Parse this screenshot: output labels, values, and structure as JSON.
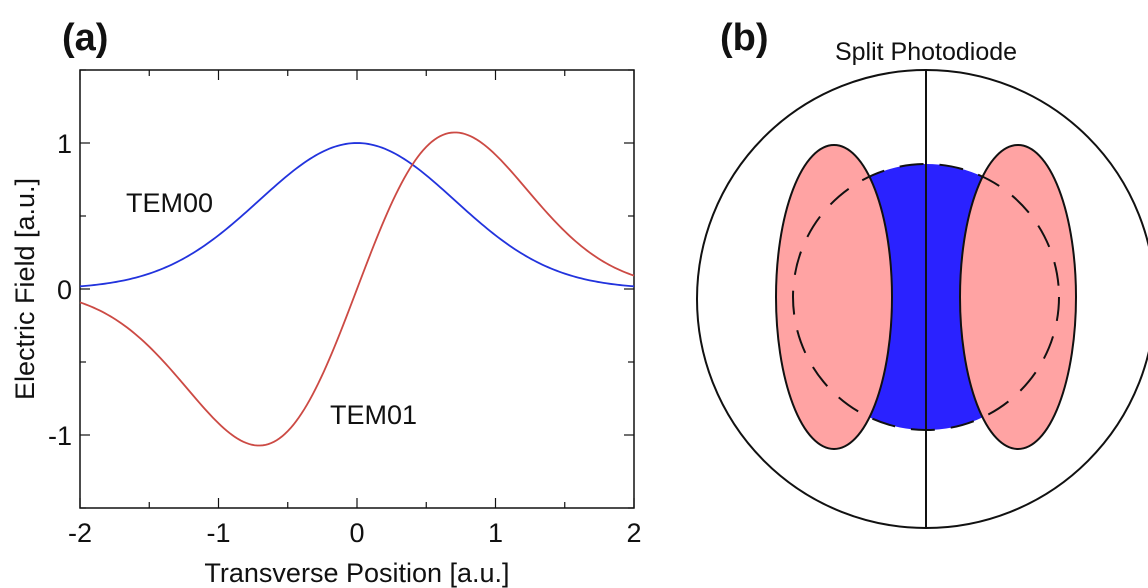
{
  "panel_a": {
    "label": "(a)",
    "xlabel": "Transverse Position [a.u.]",
    "ylabel": "Electric Field [a.u.]",
    "x_ticks": [
      "-2",
      "-1",
      "0",
      "1",
      "2"
    ],
    "y_ticks": [
      "-1",
      "0",
      "1"
    ],
    "annotation_tem00": "TEM00",
    "annotation_tem01": "TEM01"
  },
  "panel_b": {
    "label": "(b)",
    "title": "Split Photodiode"
  },
  "colors": {
    "tem00": "#2233dd",
    "tem01": "#cc4a44",
    "blue_fill": "#2a22ff",
    "pink_fill": "#ffa3a3"
  },
  "chart_data": {
    "type": "line",
    "xlim": [
      -2,
      2
    ],
    "ylim": [
      -1.5,
      1.5
    ],
    "grid": false,
    "legend": "none",
    "series": [
      {
        "name": "TEM00",
        "x": [
          -2,
          -1.75,
          -1.5,
          -1.25,
          -1,
          -0.75,
          -0.5,
          -0.25,
          0,
          0.25,
          0.5,
          0.75,
          1,
          1.25,
          1.5,
          1.75,
          2
        ],
        "y": [
          0.02,
          0.05,
          0.11,
          0.21,
          0.37,
          0.57,
          0.78,
          0.94,
          1.0,
          0.94,
          0.78,
          0.57,
          0.37,
          0.21,
          0.11,
          0.05,
          0.02
        ]
      },
      {
        "name": "TEM01",
        "x": [
          -2,
          -1.75,
          -1.5,
          -1.25,
          -1,
          -0.75,
          -0.5,
          -0.25,
          0,
          0.25,
          0.5,
          0.75,
          1,
          1.25,
          1.5,
          1.75,
          2
        ],
        "y": [
          -0.1,
          -0.25,
          -0.47,
          -0.74,
          -0.98,
          -1.06,
          -0.92,
          -0.55,
          0.0,
          0.55,
          0.92,
          1.06,
          0.98,
          0.74,
          0.47,
          0.25,
          0.1
        ]
      }
    ]
  }
}
